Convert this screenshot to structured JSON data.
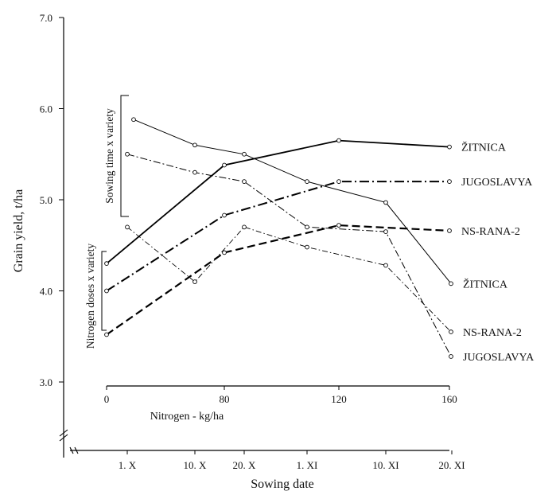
{
  "chart_data": {
    "type": "line",
    "ylabel": "Grain yield, t/ha",
    "ylim": [
      3.0,
      7.0
    ],
    "y_ticks": [
      "3.0",
      "4.0",
      "5.0",
      "6.0",
      "7.0"
    ],
    "nitrogen_axis": {
      "xlabel": "Nitrogen - kg/ha",
      "ticks": [
        "0",
        "80",
        "120",
        "160"
      ]
    },
    "sowing_axis": {
      "xlabel": "Sowing date",
      "categories": [
        "1. X",
        "10. X",
        "20. X",
        "1. XI",
        "10. XI",
        "20. XI"
      ]
    },
    "bracket_labels": {
      "sowing": "Sowing time x variety",
      "nitrogen": "Nitrogen doses x variety"
    },
    "nitrogen_series": [
      {
        "name": "ŽITNICA",
        "style": "solid-thick",
        "x": [
          0,
          80,
          120,
          160
        ],
        "values": [
          4.3,
          5.38,
          5.65,
          5.58
        ]
      },
      {
        "name": "JUGOSLAVYA",
        "style": "dashdot-thick",
        "x": [
          0,
          80,
          120,
          160
        ],
        "values": [
          4.0,
          4.83,
          5.2,
          5.2
        ]
      },
      {
        "name": "NS-RANA-2",
        "style": "dashed-thick",
        "x": [
          0,
          80,
          120,
          160
        ],
        "values": [
          3.52,
          4.42,
          4.72,
          4.66
        ]
      }
    ],
    "sowing_series": [
      {
        "name": "ŽITNICA",
        "style": "solid-thin",
        "values": [
          5.88,
          5.6,
          5.5,
          5.2,
          4.97,
          4.08
        ]
      },
      {
        "name": "JUGOSLAVYA",
        "style": "dashdot-thin",
        "values": [
          5.5,
          5.3,
          5.2,
          4.7,
          4.65,
          3.28
        ]
      },
      {
        "name": "NS-RANA-2",
        "style": "dashed-thin",
        "values": [
          4.7,
          4.1,
          4.7,
          4.48,
          4.28,
          3.55
        ]
      }
    ]
  }
}
